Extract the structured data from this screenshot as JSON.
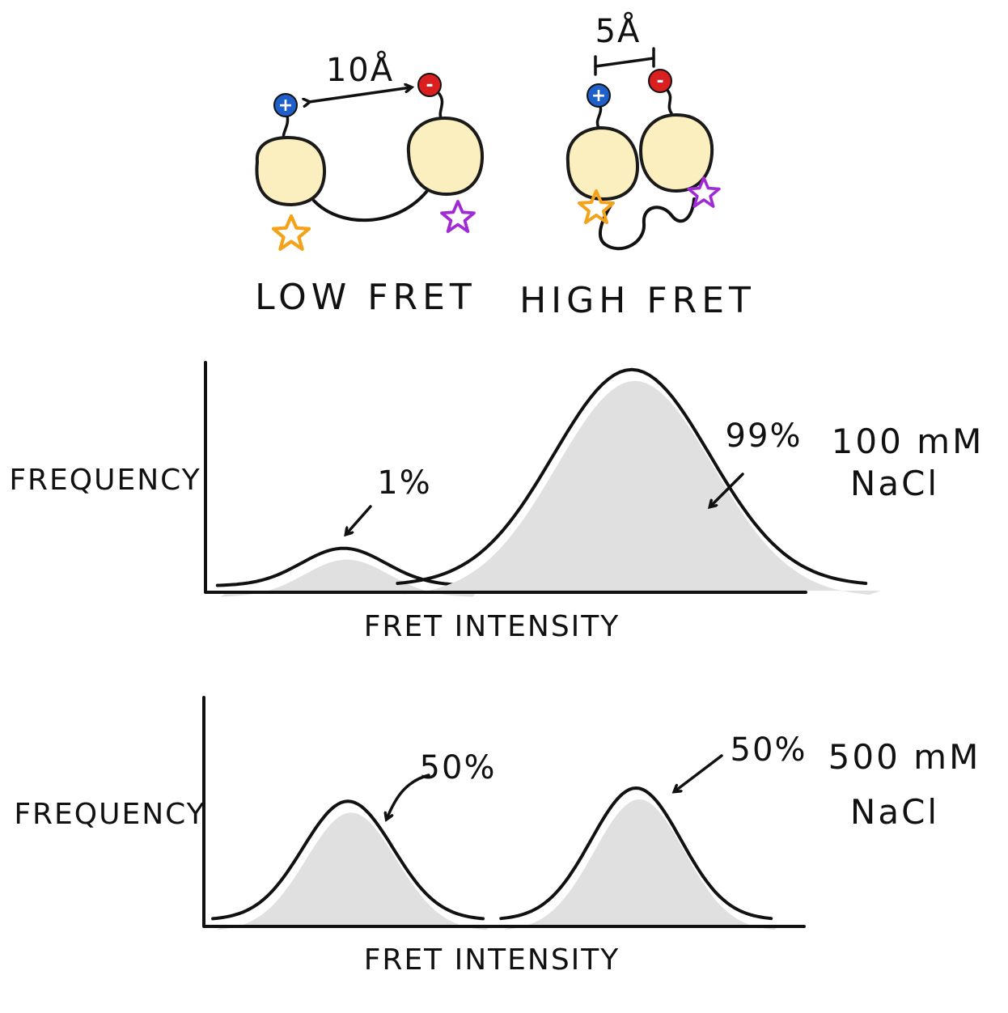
{
  "diagram": {
    "states": [
      {
        "label": "LOW FRET",
        "distance": "10Å"
      },
      {
        "label": "HIGH FRET",
        "distance": "5Å"
      }
    ],
    "charge_labels": {
      "positive": "+",
      "negative": "-"
    },
    "colors": {
      "domain_fill": "#fbeebf",
      "domain_stroke": "#1a1a1a",
      "positive": "#1f5fc9",
      "negative": "#d91f1f",
      "donor_star": "#f4a21a",
      "acceptor_star": "#a02bd6",
      "peak_fill": "#e0e0e0"
    }
  },
  "chart_data": [
    {
      "type": "area",
      "xlabel": "FRET INTENSITY",
      "ylabel": "FREQUENCY",
      "condition": [
        "100 mM",
        "NaCl"
      ],
      "peaks": [
        {
          "population_label": "1%",
          "population_percent": 1,
          "center": 0.23,
          "width": 0.07,
          "height": 0.17
        },
        {
          "population_label": "99%",
          "population_percent": 99,
          "center": 0.71,
          "width": 0.13,
          "height": 0.98
        }
      ]
    },
    {
      "type": "area",
      "xlabel": "FRET INTENSITY",
      "ylabel": "FREQUENCY",
      "condition": [
        "500 mM",
        "NaCl"
      ],
      "peaks": [
        {
          "population_label": "50%",
          "population_percent": 50,
          "center": 0.24,
          "width": 0.075,
          "height": 0.54
        },
        {
          "population_label": "50%",
          "population_percent": 50,
          "center": 0.72,
          "width": 0.075,
          "height": 0.6
        }
      ]
    }
  ]
}
